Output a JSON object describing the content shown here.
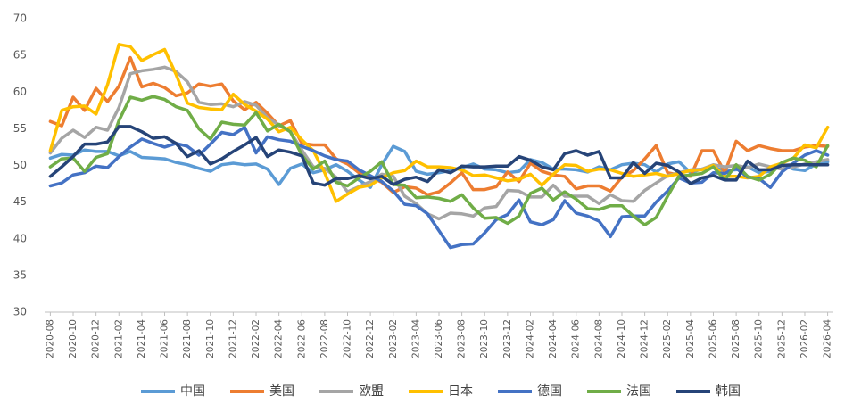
{
  "chart_data": {
    "type": "line",
    "categories": [
      "2020-08",
      null,
      "2020-10",
      null,
      "2020-12",
      null,
      "2021-02",
      null,
      "2021-04",
      null,
      "2021-06",
      null,
      "2021-08",
      null,
      "2021-10",
      null,
      "2021-12",
      null,
      "2022-02",
      null,
      "2022-04",
      null,
      "2022-06",
      null,
      "2022-08",
      null,
      "2022-10",
      null,
      "2022-12",
      null,
      "2023-02",
      null,
      "2023-04",
      null,
      "2023-06",
      null,
      "2023-08",
      null,
      "2023-10",
      null,
      "2023-12",
      null,
      "2024-02",
      null,
      "2024-04",
      null,
      "2024-06",
      null,
      "2024-08",
      null,
      "2024-10",
      null,
      "2024-12",
      null,
      "2025-02",
      null,
      "2025-04",
      null,
      "2025-06",
      null,
      "2025-08",
      null,
      "2025-10",
      null,
      "2025-12",
      null,
      "2026-02",
      null,
      "2026-04"
    ],
    "series": [
      {
        "name": "中国",
        "color": "#5b9bd5",
        "values": [
          51.0,
          51.5,
          51.4,
          52.1,
          51.9,
          51.9,
          51.3,
          51.9,
          51.1,
          51.0,
          50.9,
          50.4,
          50.1,
          49.6,
          49.2,
          50.1,
          50.3,
          50.1,
          50.2,
          49.5,
          47.4,
          49.6,
          50.2,
          49.0,
          49.4,
          50.1,
          49.2,
          48.0,
          47.0,
          50.1,
          52.6,
          51.9,
          49.2,
          48.8,
          49.0,
          49.3,
          49.7,
          50.2,
          49.5,
          49.4,
          49.0,
          49.2,
          50.8,
          50.4,
          49.5,
          49.5,
          49.4,
          49.1,
          49.8,
          49.4,
          50.1,
          50.3,
          50.1,
          49.1,
          50.2,
          50.5,
          49.0,
          49.5,
          49.7,
          49.3,
          49.4,
          49.8,
          49.0,
          49.2,
          50.1,
          49.5,
          49.3,
          50.2,
          50.5
        ]
      },
      {
        "name": "美国",
        "color": "#ed7d31",
        "values": [
          56.0,
          55.4,
          59.3,
          57.5,
          60.5,
          58.7,
          60.8,
          64.7,
          60.7,
          61.2,
          60.6,
          59.5,
          59.9,
          61.1,
          60.8,
          61.1,
          58.8,
          57.6,
          58.6,
          57.1,
          55.4,
          56.1,
          53.0,
          52.8,
          52.8,
          50.9,
          50.2,
          49.0,
          48.4,
          47.7,
          46.3,
          47.1,
          46.9,
          46.0,
          46.4,
          47.6,
          49.0,
          46.7,
          46.7,
          47.1,
          49.1,
          47.8,
          50.3,
          49.2,
          48.7,
          48.5,
          46.8,
          47.2,
          47.2,
          46.5,
          48.4,
          49.3,
          50.9,
          52.7,
          49.0,
          48.7,
          48.5,
          52.0,
          52.0,
          49.0,
          53.3,
          52.0,
          52.7,
          52.3,
          52.0,
          52.0,
          52.5,
          52.7,
          52.6
        ]
      },
      {
        "name": "欧盟",
        "color": "#a5a5a5",
        "values": [
          51.7,
          53.7,
          54.8,
          53.8,
          55.2,
          54.8,
          57.9,
          62.5,
          62.9,
          63.1,
          63.4,
          62.8,
          61.4,
          58.6,
          58.3,
          58.4,
          58.0,
          58.7,
          58.2,
          56.5,
          55.5,
          54.6,
          52.1,
          49.8,
          49.6,
          48.4,
          46.4,
          47.1,
          47.8,
          48.8,
          48.5,
          45.8,
          44.8,
          43.4,
          42.7,
          43.5,
          43.4,
          43.1,
          44.2,
          44.4,
          46.6,
          46.5,
          45.7,
          45.7,
          47.3,
          45.8,
          45.8,
          45.8,
          44.8,
          46.0,
          45.2,
          45.1,
          46.6,
          47.6,
          48.6,
          49.0,
          49.4,
          49.5,
          50.1,
          49.8,
          50.0,
          49.7,
          50.2,
          49.8,
          49.5,
          49.8,
          50.2,
          50.5,
          50.8
        ]
      },
      {
        "name": "日本",
        "color": "#ffc000",
        "values": [
          52.0,
          57.5,
          58.0,
          58.1,
          57.0,
          61.0,
          66.5,
          66.2,
          64.3,
          65.1,
          65.8,
          62.4,
          58.5,
          57.9,
          57.7,
          57.6,
          59.7,
          58.3,
          57.4,
          56.3,
          54.6,
          55.2,
          53.5,
          52.0,
          49.0,
          45.1,
          46.1,
          47.0,
          47.3,
          48.3,
          49.0,
          49.3,
          50.6,
          49.8,
          49.8,
          49.7,
          49.4,
          48.6,
          48.7,
          48.3,
          47.9,
          48.1,
          48.8,
          47.3,
          48.8,
          50.1,
          50.0,
          49.2,
          49.5,
          49.4,
          48.9,
          48.5,
          48.7,
          48.9,
          48.5,
          48.9,
          49.3,
          49.4,
          50.0,
          48.5,
          48.5,
          48.3,
          48.5,
          49.8,
          50.3,
          51.0,
          52.8,
          52.4,
          55.2
        ]
      },
      {
        "name": "德国",
        "color": "#4472c4",
        "values": [
          47.2,
          47.6,
          48.7,
          49.0,
          49.9,
          49.7,
          51.2,
          52.5,
          53.6,
          53.0,
          52.5,
          53.0,
          52.6,
          51.4,
          52.9,
          54.5,
          54.2,
          55.2,
          51.7,
          53.9,
          53.5,
          53.3,
          52.6,
          52.0,
          51.3,
          50.8,
          50.6,
          49.4,
          48.6,
          47.8,
          46.5,
          44.7,
          44.5,
          43.4,
          41.1,
          38.8,
          39.2,
          39.3,
          40.8,
          42.6,
          43.3,
          45.3,
          42.3,
          41.9,
          42.6,
          45.2,
          43.5,
          43.1,
          42.4,
          40.3,
          43.0,
          43.1,
          43.1,
          45.0,
          46.5,
          48.3,
          47.6,
          47.7,
          49.0,
          48.9,
          49.6,
          48.4,
          48.2,
          47.0,
          49.1,
          50.3,
          51.4,
          52.0,
          51.4
        ]
      },
      {
        "name": "法国",
        "color": "#70ad47",
        "values": [
          49.8,
          50.9,
          51.0,
          49.2,
          51.1,
          51.6,
          56.1,
          59.3,
          58.9,
          59.4,
          59.0,
          58.0,
          57.5,
          55.0,
          53.6,
          55.9,
          55.6,
          55.5,
          57.2,
          54.7,
          55.6,
          54.6,
          51.4,
          49.5,
          50.6,
          47.7,
          47.2,
          48.3,
          49.2,
          50.5,
          47.4,
          47.3,
          45.6,
          45.7,
          45.5,
          45.1,
          46.0,
          44.2,
          42.8,
          42.9,
          42.1,
          43.1,
          46.2,
          46.9,
          45.3,
          46.4,
          45.4,
          44.1,
          44.0,
          44.5,
          44.5,
          43.1,
          41.9,
          42.9,
          45.8,
          48.5,
          48.7,
          48.9,
          49.8,
          48.0,
          50.1,
          48.5,
          48.0,
          48.8,
          50.4,
          51.0,
          50.7,
          49.8,
          52.7
        ]
      },
      {
        "name": "韩国",
        "color": "#264478",
        "values": [
          48.5,
          49.8,
          51.2,
          52.9,
          52.9,
          53.2,
          55.3,
          55.3,
          54.6,
          53.7,
          53.9,
          53.0,
          51.2,
          52.0,
          50.2,
          50.9,
          51.9,
          52.8,
          53.8,
          51.2,
          52.1,
          51.8,
          51.3,
          47.6,
          47.3,
          48.2,
          48.2,
          48.6,
          48.2,
          48.5,
          47.4,
          48.1,
          48.4,
          47.8,
          49.4,
          49.0,
          49.9,
          49.8,
          49.8,
          49.9,
          49.9,
          51.2,
          50.7,
          49.8,
          49.4,
          51.6,
          52.0,
          51.4,
          51.9,
          48.3,
          48.3,
          50.4,
          48.9,
          50.3,
          50.0,
          49.1,
          47.5,
          48.3,
          48.6,
          48.0,
          48.0,
          50.6,
          49.4,
          49.4,
          50.0,
          50.1,
          50.1,
          50.1,
          50.1
        ]
      }
    ],
    "ylim": [
      30,
      70
    ],
    "yticks": [
      30,
      35,
      40,
      45,
      50,
      55,
      60,
      65,
      70
    ],
    "grid": false,
    "legend": "bottom"
  }
}
